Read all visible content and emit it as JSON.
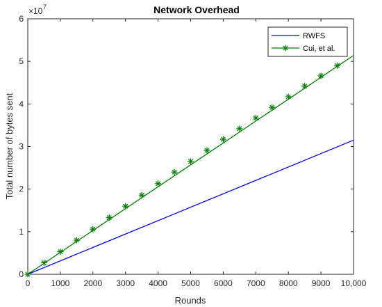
{
  "chart_data": {
    "type": "line",
    "title": "Network Overhead",
    "xlabel": "Rounds",
    "ylabel": "Total number of bytes sent",
    "xlim": [
      0,
      10000
    ],
    "ylim": [
      0,
      6
    ],
    "y_multiplier": {
      "base": "×10",
      "exponent": "7"
    },
    "xticks": [
      0,
      1000,
      2000,
      3000,
      4000,
      5000,
      6000,
      7000,
      8000,
      9000,
      10000
    ],
    "xtick_labels": [
      "0",
      "1000",
      "2000",
      "3000",
      "4000",
      "5000",
      "6000",
      "7000",
      "8000",
      "9000",
      "10,000"
    ],
    "yticks": [
      0,
      1,
      2,
      3,
      4,
      5,
      6
    ],
    "ytick_labels": [
      "0",
      "1",
      "2",
      "3",
      "4",
      "5",
      "6"
    ],
    "grid": false,
    "legend_position": "top-right",
    "series": [
      {
        "name": "RWFS",
        "color": "#0000ff",
        "marker": "none",
        "x": [
          0,
          10000
        ],
        "y": [
          0,
          3.15
        ]
      },
      {
        "name": "Cui, et al.",
        "color": "#008000",
        "marker": "asterisk",
        "x": [
          0,
          10000
        ],
        "y": [
          0,
          5.14
        ],
        "marker_x": [
          0,
          500,
          1000,
          1500,
          2000,
          2500,
          3000,
          3500,
          4000,
          4500,
          5000,
          5500,
          6000,
          6500,
          7000,
          7500,
          8000,
          8500,
          9000,
          9500
        ],
        "marker_y": [
          0,
          0.27,
          0.53,
          0.8,
          1.06,
          1.33,
          1.6,
          1.86,
          2.13,
          2.4,
          2.65,
          2.91,
          3.17,
          3.42,
          3.67,
          3.92,
          4.17,
          4.42,
          4.66,
          4.9
        ]
      }
    ]
  }
}
